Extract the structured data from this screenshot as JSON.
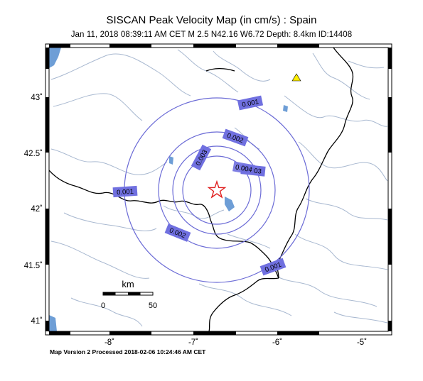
{
  "header": {
    "title": "SISCAN Peak Velocity Map (in cm/s) : Spain",
    "subtitle": "Jan 11, 2018 08:39:11 AM CET   M 2.5   N42.16 W6.72   Depth: 8.4km   ID:14408"
  },
  "axes": {
    "lat_ticks": [
      "43˚",
      "42.5˚",
      "42˚",
      "41.5˚",
      "41˚"
    ],
    "lon_ticks": [
      "-8˚",
      "-7˚",
      "-6˚",
      "-5˚"
    ]
  },
  "scale_bar": {
    "unit": "km",
    "start_label": "0",
    "end_label": "50"
  },
  "contours": [
    {
      "label": "0.001"
    },
    {
      "label": "0.001"
    },
    {
      "label": "0.001"
    },
    {
      "label": "0.002"
    },
    {
      "label": "0.002"
    },
    {
      "label": "0.003"
    },
    {
      "label": "0.003"
    },
    {
      "label": "0.004"
    }
  ],
  "epicenter": {
    "lat": 42.16,
    "lon": -6.72
  },
  "station": {
    "symbol": "yellow-triangle"
  },
  "footer": {
    "text": "Map Version 2 Processed 2018-02-06 10:24:46 AM CET"
  },
  "colors": {
    "contour": "#6b6bd6",
    "label_fill": "#7070e0",
    "river": "#a8b8d0",
    "water": "#6e9ed6",
    "epicenter": "#e02020",
    "station": "#ffee00"
  }
}
